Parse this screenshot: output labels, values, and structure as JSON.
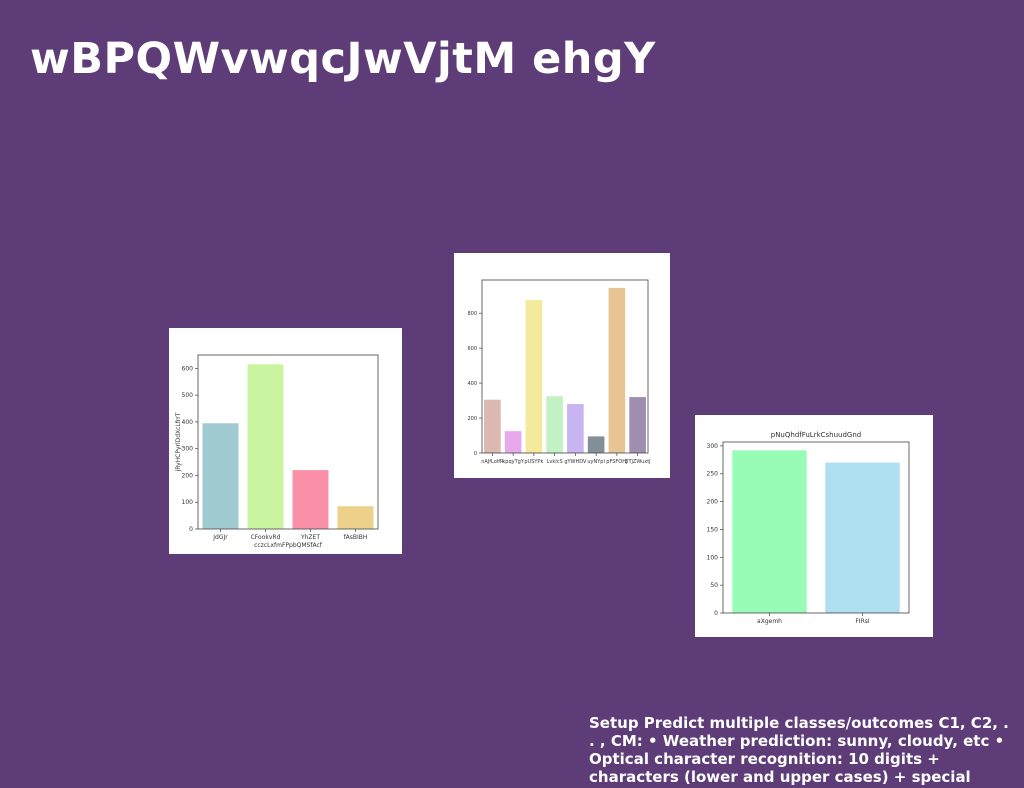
{
  "slide": {
    "title": "wBPQWvwqcJwVjtM ehgY",
    "body": "Setup Predict multiple classes/outcomes C1, C2, . . , CM: • Weather prediction: sunny, cloudy, etc • Optical character recognition: 10 digits + characters (lower and upper cases) + special"
  },
  "chart_data": [
    {
      "type": "bar",
      "title": "",
      "xlabel": "cczcLxfmFPpbQMSfAcf",
      "ylabel": "jRyHCPyrlDdXcLfrrT",
      "categories": [
        "JdGJr",
        "CFookvRd",
        "YhZET",
        "fAsBIBH"
      ],
      "values": [
        395,
        615,
        220,
        85
      ],
      "colors": [
        "#9fcbd0",
        "#c9f5a0",
        "#fa90a8",
        "#edd08a"
      ],
      "yticks": [
        0,
        100,
        200,
        300,
        400,
        500,
        600
      ],
      "ylim": [
        0,
        650
      ]
    },
    {
      "type": "bar",
      "title": "",
      "xlabel": "",
      "ylabel": "",
      "categories": [
        "nAJfLoIfR",
        "kpqyTgY",
        "pUSYPk",
        "LvkIcS",
        "gYWHDV",
        "uyNYpl",
        "pFSFOHJ",
        "DTjZWuxtJ"
      ],
      "values": [
        305,
        125,
        875,
        325,
        280,
        95,
        945,
        320
      ],
      "colors": [
        "#dbb8b0",
        "#e8a8ec",
        "#f3ea9c",
        "#c2f2c4",
        "#c8b4f0",
        "#848f97",
        "#e6c494",
        "#9f8eb0"
      ],
      "yticks": [
        0,
        200,
        400,
        600,
        800
      ],
      "ylim": [
        0,
        990
      ]
    },
    {
      "type": "bar",
      "title": "pNuQhdfFuLrkCshuudGnd",
      "xlabel": "",
      "ylabel": "",
      "categories": [
        "aXgemh",
        "FIRsI"
      ],
      "values": [
        292,
        270
      ],
      "colors": [
        "#98fbb6",
        "#addff0"
      ],
      "yticks": [
        0,
        50,
        100,
        150,
        200,
        250,
        300
      ],
      "ylim": [
        0,
        307
      ]
    }
  ]
}
